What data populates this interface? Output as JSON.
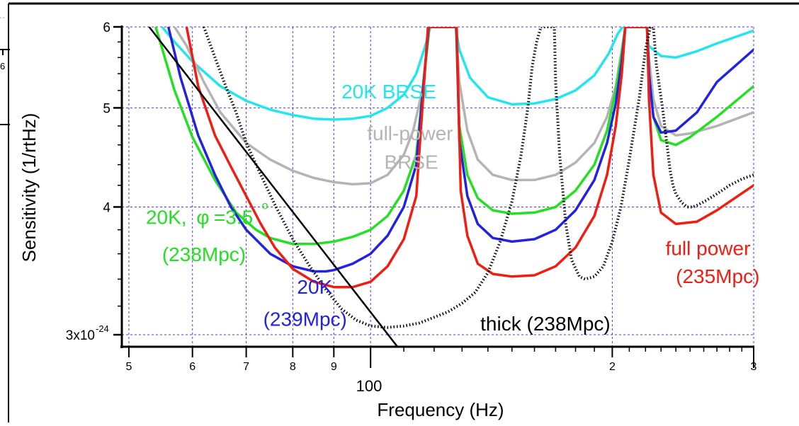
{
  "chart_data": {
    "type": "line",
    "xlabel": "Frequency (Hz)",
    "ylabel": "Sensitivity (1/rtHz)",
    "x_scale": "log",
    "y_scale": "log",
    "xlim": [
      49,
      300
    ],
    "ylim": [
      2.92e-24,
      6e-24
    ],
    "grid": true,
    "x_ticks": [
      {
        "value": 50,
        "label": "5"
      },
      {
        "value": 60,
        "label": "6"
      },
      {
        "value": 70,
        "label": "7"
      },
      {
        "value": 80,
        "label": "8"
      },
      {
        "value": 90,
        "label": "9"
      },
      {
        "value": 100,
        "label": ""
      },
      {
        "value": 200,
        "label": "2"
      },
      {
        "value": 300,
        "label": "3"
      }
    ],
    "x_decade_label": "100",
    "y_ticks": [
      {
        "value": 3e-24,
        "label": "3x10"
      },
      {
        "value": 4e-24,
        "label": "4"
      },
      {
        "value": 5e-24,
        "label": "5"
      },
      {
        "value": 6e-24,
        "label": "6"
      }
    ],
    "y_exponent_label": "-24",
    "colors": {
      "grid": "#5533dd",
      "axis": "#000000",
      "cyan": "#22e6ee",
      "gray": "#b4b4b4",
      "green": "#22e022",
      "blue": "#2222e0",
      "red": "#f01d10",
      "black": "#000000"
    },
    "series": [
      {
        "name": "20K BRSE",
        "color": "#22e6ee",
        "style": "solid",
        "x": [
          55,
          57,
          60,
          65,
          70,
          75,
          80,
          85,
          90,
          95,
          100,
          105,
          110,
          114,
          117,
          118.7,
          127.6,
          129,
          133,
          140,
          150,
          160,
          170,
          180,
          190,
          198,
          203,
          206,
          207.7,
          220.6,
          222,
          230,
          240,
          255,
          270,
          300
        ],
        "y": [
          6e-24,
          5.8e-24,
          5.55e-24,
          5.25e-24,
          5.08e-24,
          4.98e-24,
          4.92e-24,
          4.88e-24,
          4.87e-24,
          4.88e-24,
          4.91e-24,
          5e-24,
          5.15e-24,
          5.4e-24,
          5.75e-24,
          6e-24,
          6e-24,
          5.7e-24,
          5.35e-24,
          5.12e-24,
          5.04e-24,
          5.05e-24,
          5.1e-24,
          5.2e-24,
          5.38e-24,
          5.65e-24,
          5.9e-24,
          6e-24,
          6e-24,
          6e-24,
          5.75e-24,
          5.62e-24,
          5.6e-24,
          5.68e-24,
          5.78e-24,
          5.95e-24
        ]
      },
      {
        "name": "full-power BRSE",
        "color": "#b4b4b4",
        "style": "solid",
        "x": [
          57,
          59,
          62,
          65,
          70,
          75,
          80,
          85,
          90,
          95,
          100,
          105,
          110,
          113,
          116,
          118.5,
          127.7,
          129,
          132,
          136,
          142,
          150,
          160,
          170,
          180,
          190,
          197,
          202,
          205.5,
          207.6,
          221,
          222.2,
          225,
          230,
          240,
          250,
          270,
          300
        ],
        "y": [
          6e-24,
          5.75e-24,
          5.3e-24,
          4.95e-24,
          4.62e-24,
          4.45e-24,
          4.34e-24,
          4.27e-24,
          4.23e-24,
          4.21e-24,
          4.22e-24,
          4.3e-24,
          4.5e-24,
          4.75e-24,
          5.2e-24,
          6e-24,
          6e-24,
          5.3e-24,
          4.75e-24,
          4.45e-24,
          4.3e-24,
          4.25e-24,
          4.25e-24,
          4.3e-24,
          4.42e-24,
          4.62e-24,
          4.9e-24,
          5.25e-24,
          5.7e-24,
          6e-24,
          6e-24,
          5.6e-24,
          5.1e-24,
          4.8e-24,
          4.7e-24,
          4.72e-24,
          4.8e-24,
          4.95e-24
        ]
      },
      {
        "name": "20K, φ=3.5° (238Mpc)",
        "color": "#22e022",
        "style": "solid",
        "x": [
          54,
          57,
          60,
          64,
          68,
          72,
          75,
          80,
          85,
          90,
          95,
          100,
          105,
          110,
          114,
          118.3,
          127.8,
          129,
          132,
          136,
          142,
          150,
          160,
          170,
          180,
          190,
          197,
          202,
          205.5,
          207.6,
          221,
          222.2,
          225,
          230,
          240,
          250,
          270,
          300
        ],
        "y": [
          6e-24,
          5.2e-24,
          4.68e-24,
          4.25e-24,
          3.95e-24,
          3.8e-24,
          3.73e-24,
          3.68e-24,
          3.68e-24,
          3.7e-24,
          3.74e-24,
          3.8e-24,
          3.92e-24,
          4.15e-24,
          4.5e-24,
          6e-24,
          6e-24,
          4.8e-24,
          4.3e-24,
          4.08e-24,
          3.97e-24,
          3.94e-24,
          3.95e-24,
          4e-24,
          4.15e-24,
          4.4e-24,
          4.75e-24,
          5.2e-24,
          5.65e-24,
          6e-24,
          6e-24,
          5.4e-24,
          4.9e-24,
          4.65e-24,
          4.6e-24,
          4.68e-24,
          4.9e-24,
          5.25e-24
        ]
      },
      {
        "name": "20K (239Mpc)",
        "color": "#2222e0",
        "style": "solid",
        "x": [
          56,
          58,
          61,
          64,
          67,
          70,
          75,
          80,
          85,
          88,
          90,
          95,
          100,
          105,
          110,
          114,
          118.1,
          127.9,
          129,
          132,
          136,
          142,
          150,
          160,
          170,
          180,
          190,
          197,
          202,
          205.5,
          207.6,
          221,
          222.2,
          225,
          230,
          240,
          255,
          270,
          300
        ],
        "y": [
          6e-24,
          5.35e-24,
          4.7e-24,
          4.3e-24,
          4e-24,
          3.8e-24,
          3.6e-24,
          3.5e-24,
          3.46e-24,
          3.46e-24,
          3.47e-24,
          3.52e-24,
          3.6e-24,
          3.75e-24,
          4e-24,
          4.4e-24,
          6e-24,
          6e-24,
          4.65e-24,
          4.1e-24,
          3.85e-24,
          3.73e-24,
          3.7e-24,
          3.72e-24,
          3.8e-24,
          3.97e-24,
          4.25e-24,
          4.62e-24,
          5.05e-24,
          5.55e-24,
          6e-24,
          6e-24,
          5.4e-24,
          4.9e-24,
          4.73e-24,
          4.75e-24,
          4.95e-24,
          5.3e-24,
          5.7e-24
        ]
      },
      {
        "name": "full power (235Mpc)",
        "color": "#f01d10",
        "style": "solid",
        "x": [
          59,
          61,
          64,
          67,
          70,
          73,
          76,
          80,
          85,
          90,
          95,
          100,
          105,
          110,
          114,
          117.9,
          128,
          129.5,
          132,
          136,
          142,
          150,
          160,
          170,
          180,
          190,
          197,
          202,
          205.5,
          207.6,
          221,
          222.2,
          225,
          230,
          240,
          255,
          270,
          300
        ],
        "y": [
          6e-24,
          5.25e-24,
          4.7e-24,
          4.38e-24,
          4.1e-24,
          3.85e-24,
          3.65e-24,
          3.48e-24,
          3.38e-24,
          3.34e-24,
          3.34e-24,
          3.38e-24,
          3.5e-24,
          3.72e-24,
          4.1e-24,
          6e-24,
          6e-24,
          4.15e-24,
          3.75e-24,
          3.52e-24,
          3.44e-24,
          3.42e-24,
          3.43e-24,
          3.5e-24,
          3.65e-24,
          3.92e-24,
          4.3e-24,
          4.8e-24,
          5.4e-24,
          6e-24,
          6e-24,
          5.1e-24,
          4.3e-24,
          3.95e-24,
          3.85e-24,
          3.87e-24,
          3.97e-24,
          4.2e-24
        ]
      },
      {
        "name": "thick (238Mpc)",
        "color": "#000000",
        "style": "dotted",
        "x": [
          62,
          64,
          66,
          68,
          70,
          73,
          76,
          80,
          84,
          88,
          92,
          96,
          100,
          105,
          110,
          115,
          120,
          125,
          130,
          135,
          140,
          145,
          150,
          154,
          157,
          159,
          161,
          163,
          163.4,
          169.4,
          170,
          172,
          175,
          178,
          182,
          185,
          190,
          195,
          200,
          205,
          210,
          216,
          220,
          223,
          224.5,
          225,
          227,
          231,
          234,
          236,
          238,
          240,
          244,
          248,
          252,
          256,
          262,
          270,
          280,
          290,
          300
        ],
        "y": [
          6e-24,
          5.6e-24,
          5.25e-24,
          4.95e-24,
          4.62e-24,
          4.3e-24,
          4.02e-24,
          3.72e-24,
          3.5e-24,
          3.32e-24,
          3.18e-24,
          3.1e-24,
          3.06e-24,
          3.05e-24,
          3.06e-24,
          3.08e-24,
          3.12e-24,
          3.16e-24,
          3.22e-24,
          3.3e-24,
          3.45e-24,
          3.7e-24,
          4.05e-24,
          4.5e-24,
          5e-24,
          5.5e-24,
          5.8e-24,
          6e-24,
          6e-24,
          6e-24,
          5.3e-24,
          4.5e-24,
          3.85e-24,
          3.55e-24,
          3.42e-24,
          3.4e-24,
          3.42e-24,
          3.5e-24,
          3.7e-24,
          4e-24,
          4.45e-24,
          5.1e-24,
          5.7e-24,
          6e-24,
          6e-24,
          6e-24,
          5.5e-24,
          5e-24,
          4.6e-24,
          4.35e-24,
          4.2e-24,
          4.12e-24,
          4.04e-24,
          4e-24,
          4e-24,
          4.02e-24,
          4.06e-24,
          4.12e-24,
          4.2e-24,
          4.26e-24,
          4.3e-24
        ]
      },
      {
        "name": "",
        "color": "#000000",
        "style": "solid",
        "x": [
          53,
          108
        ],
        "y": [
          6e-24,
          2.92e-24
        ]
      }
    ],
    "annotations": [
      {
        "text": "20K BRSE",
        "color": "#22e6ee",
        "x": 92,
        "y": 5.11e-24
      },
      {
        "text": "full-power",
        "color": "#b4b4b4",
        "x": 99,
        "y": 4.65e-24
      },
      {
        "text": "BRSE",
        "color": "#b4b4b4",
        "x": 104,
        "y": 4.36e-24
      },
      {
        "text": "20K, ",
        "color": "#22e022",
        "x": 52.5,
        "y": 3.85e-24
      },
      {
        "text": "φ",
        "color": "#22e022",
        "x": 60.7,
        "y": 3.85e-24
      },
      {
        "text": "=3.5",
        "color": "#22e022",
        "x": 63.8,
        "y": 3.85e-24
      },
      {
        "text": "o",
        "color": "#22e022",
        "x": 73.2,
        "y": 3.98e-24
      },
      {
        "text": "(238Mpc)",
        "color": "#22e022",
        "x": 55,
        "y": 3.54e-24
      },
      {
        "text": "20K",
        "color": "#2222e0",
        "x": 81,
        "y": 3.29e-24
      },
      {
        "text": "(239Mpc)",
        "color": "#2222e0",
        "x": 73.5,
        "y": 3.06e-24
      },
      {
        "text": "thick (238Mpc)",
        "color": "#000000",
        "x": 137,
        "y": 3.03e-24
      },
      {
        "text": "full power",
        "color": "#f01d10",
        "x": 233,
        "y": 3.59e-24
      },
      {
        "text": "(235Mpc)",
        "color": "#f01d10",
        "x": 240,
        "y": 3.37e-24
      }
    ]
  },
  "left_strip": {
    "label": "6"
  }
}
